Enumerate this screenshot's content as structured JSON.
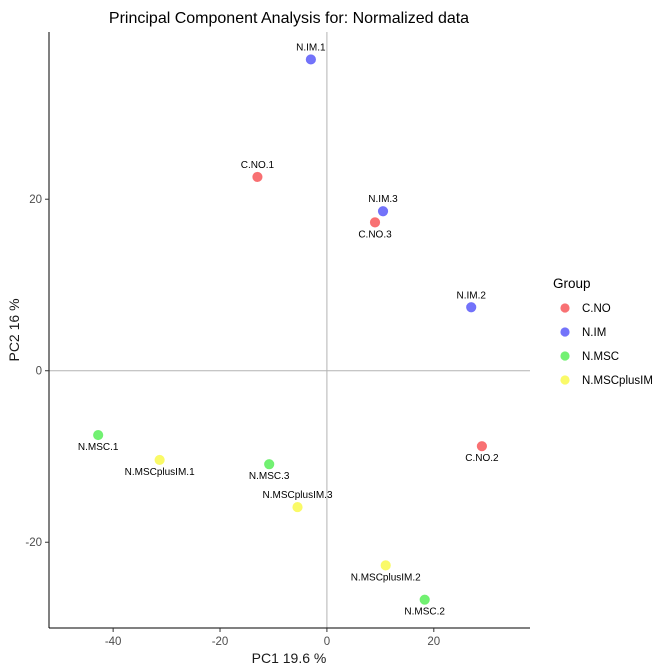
{
  "chart_data": {
    "type": "scatter",
    "title": "Principal Component Analysis for:  Normalized data",
    "xlabel": "PC1 19.6 %",
    "ylabel": "PC2 16 %",
    "xlim": [
      -52,
      38
    ],
    "ylim": [
      -30,
      39.5
    ],
    "xticks": [
      -40,
      -20,
      0,
      20
    ],
    "yticks": [
      -20,
      0,
      20
    ],
    "reference_lines": {
      "x": 0,
      "y": 0
    },
    "grid": false,
    "legend": {
      "title": "Group",
      "placement": "right",
      "entries": [
        {
          "name": "C.NO",
          "color": "#F8696B"
        },
        {
          "name": "N.IM",
          "color": "#6B6BFA"
        },
        {
          "name": "N.MSC",
          "color": "#6AF06A"
        },
        {
          "name": "N.MSCplusIM",
          "color": "#FAFA60"
        }
      ]
    },
    "series": [
      {
        "name": "C.NO",
        "color": "#F8696B",
        "points": [
          {
            "label": "C.NO.1",
            "x": -13,
            "y": 22.6,
            "label_pos": "above"
          },
          {
            "label": "C.NO.3",
            "x": 9,
            "y": 17.3,
            "label_pos": "below"
          },
          {
            "label": "C.NO.2",
            "x": 29,
            "y": -8.8,
            "label_pos": "below"
          }
        ]
      },
      {
        "name": "N.IM",
        "color": "#6B6BFA",
        "points": [
          {
            "label": "N.IM.1",
            "x": -3,
            "y": 36.3,
            "label_pos": "above"
          },
          {
            "label": "N.IM.3",
            "x": 10.5,
            "y": 18.6,
            "label_pos": "above"
          },
          {
            "label": "N.IM.2",
            "x": 27,
            "y": 7.4,
            "label_pos": "above"
          }
        ]
      },
      {
        "name": "N.MSC",
        "color": "#6AF06A",
        "points": [
          {
            "label": "N.MSC.1",
            "x": -42.8,
            "y": -7.5,
            "label_pos": "below"
          },
          {
            "label": "N.MSC.3",
            "x": -10.8,
            "y": -10.9,
            "label_pos": "below"
          },
          {
            "label": "N.MSC.2",
            "x": 18.3,
            "y": -26.7,
            "label_pos": "below"
          }
        ]
      },
      {
        "name": "N.MSCplusIM",
        "color": "#FAFA60",
        "points": [
          {
            "label": "N.MSCplusIM.1",
            "x": -31.3,
            "y": -10.4,
            "label_pos": "below"
          },
          {
            "label": "N.MSCplusIM.3",
            "x": -5.5,
            "y": -15.9,
            "label_pos": "above"
          },
          {
            "label": "N.MSCplusIM.2",
            "x": 11,
            "y": -22.7,
            "label_pos": "below"
          }
        ]
      }
    ]
  }
}
